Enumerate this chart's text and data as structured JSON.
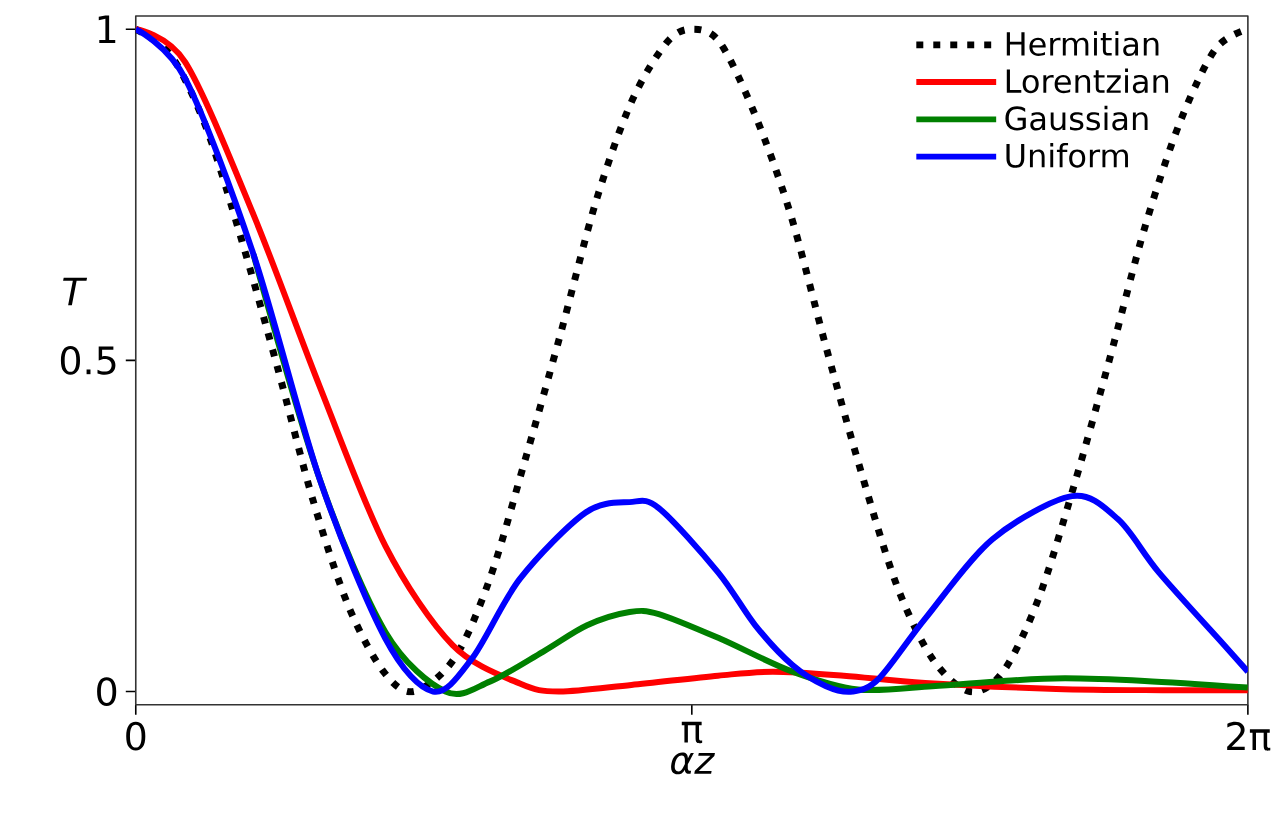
{
  "chart_data": {
    "type": "line",
    "xlabel": "αz",
    "ylabel": "T",
    "xlim": [
      0,
      6.2832
    ],
    "ylim": [
      -0.02,
      1.02
    ],
    "xticks": [
      0,
      {
        "value": 3.14159,
        "label": "π"
      },
      {
        "value": 6.2832,
        "label": "2π"
      }
    ],
    "yticks": [
      0,
      0.5,
      1
    ],
    "grid": false,
    "legend": "top right",
    "series": [
      {
        "name": "Hermitian",
        "color": "#000000",
        "line_style": "dotted",
        "x": [
          0,
          0.2,
          0.4,
          0.6,
          0.8,
          1.0,
          1.2,
          1.4,
          1.5708,
          1.8,
          2.0,
          2.2,
          2.4,
          2.6,
          2.8,
          3.0,
          3.1416,
          3.3,
          3.5,
          3.7,
          3.9,
          4.1,
          4.3,
          4.5,
          4.7124,
          4.9,
          5.1,
          5.3,
          5.5,
          5.7,
          5.9,
          6.1,
          6.2832
        ],
        "values": [
          1,
          0.96,
          0.85,
          0.68,
          0.49,
          0.29,
          0.13,
          0.03,
          0,
          0.05,
          0.17,
          0.35,
          0.54,
          0.74,
          0.89,
          0.98,
          1,
          0.98,
          0.87,
          0.72,
          0.52,
          0.33,
          0.16,
          0.05,
          0,
          0.03,
          0.14,
          0.31,
          0.5,
          0.7,
          0.86,
          0.97,
          1
        ]
      },
      {
        "name": "Lorentzian",
        "color": "#ff0000",
        "line_style": "solid",
        "x": [
          0,
          0.28,
          0.665,
          1.04,
          1.41,
          1.79,
          2.17,
          2.39,
          2.8,
          3.29,
          3.6,
          4.0,
          4.46,
          5.2,
          5.8,
          6.2832
        ],
        "values": [
          1,
          0.95,
          0.72,
          0.46,
          0.22,
          0.07,
          0.012,
          0,
          0.01,
          0.024,
          0.03,
          0.024,
          0.013,
          0.004,
          0.002,
          0.002
        ]
      },
      {
        "name": "Gaussian",
        "color": "#008000",
        "line_style": "solid",
        "x": [
          0.665,
          1.04,
          1.41,
          1.75,
          2.0,
          2.3,
          2.55,
          2.79,
          2.955,
          3.3,
          3.71,
          4.08,
          4.5,
          4.9,
          5.25,
          5.7,
          6.2832
        ],
        "values": [
          0.66,
          0.32,
          0.09,
          0,
          0.015,
          0.06,
          0.1,
          0.12,
          0.117,
          0.08,
          0.03,
          0.003,
          0.008,
          0.016,
          0.02,
          0.016,
          0.006
        ]
      },
      {
        "name": "Uniform",
        "color": "#0000ff",
        "line_style": "solid",
        "x": [
          0,
          0.28,
          0.665,
          1.04,
          1.41,
          1.68,
          1.9,
          2.17,
          2.54,
          2.79,
          2.955,
          3.29,
          3.5,
          3.71,
          3.9,
          4.05,
          4.2,
          4.46,
          4.84,
          5.29,
          5.55,
          5.78,
          6.15,
          6.2832
        ],
        "values": [
          1,
          0.925,
          0.66,
          0.32,
          0.08,
          0,
          0.05,
          0.17,
          0.27,
          0.286,
          0.277,
          0.18,
          0.1,
          0.04,
          0.008,
          0,
          0.02,
          0.11,
          0.23,
          0.295,
          0.26,
          0.18,
          0.07,
          0.03
        ]
      }
    ]
  }
}
